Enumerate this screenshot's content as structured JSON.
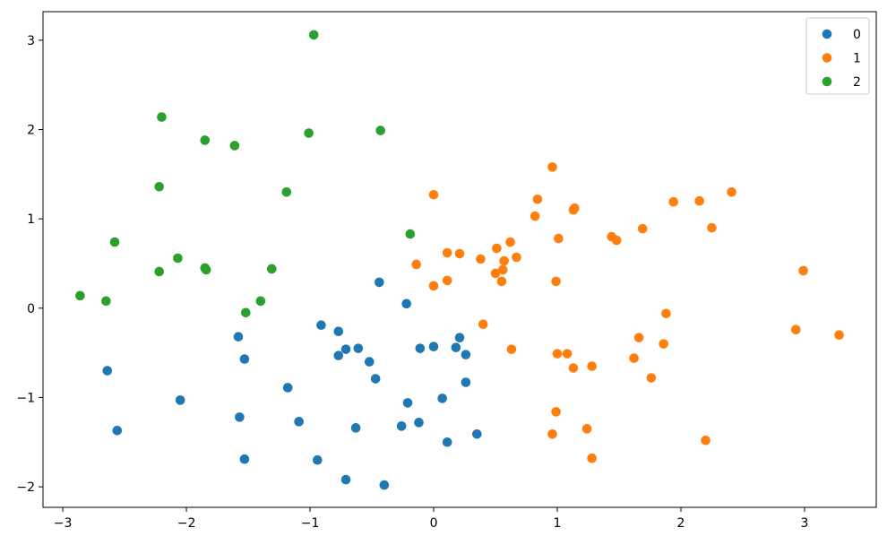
{
  "chart_data": {
    "type": "scatter",
    "title": "",
    "xlabel": "",
    "ylabel": "",
    "xlim": [
      -3.16,
      3.58
    ],
    "ylim": [
      -2.23,
      3.32
    ],
    "xticks": [
      -3,
      -2,
      -1,
      0,
      1,
      2,
      3
    ],
    "yticks": [
      -2,
      -1,
      0,
      1,
      2,
      3
    ],
    "xtick_labels": [
      "−3",
      "−2",
      "−1",
      "0",
      "1",
      "2",
      "3"
    ],
    "ytick_labels": [
      "−2",
      "−1",
      "0",
      "1",
      "2",
      "3"
    ],
    "grid": false,
    "legend_position": "top-right",
    "series": [
      {
        "name": "0",
        "color": "#1f77b4",
        "points": [
          [
            -2.64,
            -0.7
          ],
          [
            -2.56,
            -1.37
          ],
          [
            -2.05,
            -1.03
          ],
          [
            -1.58,
            -0.32
          ],
          [
            -1.53,
            -0.57
          ],
          [
            -1.57,
            -1.22
          ],
          [
            -1.53,
            -1.69
          ],
          [
            -1.18,
            -0.89
          ],
          [
            -1.09,
            -1.27
          ],
          [
            -0.94,
            -1.7
          ],
          [
            -0.91,
            -0.19
          ],
          [
            -0.77,
            -0.26
          ],
          [
            -0.77,
            -0.53
          ],
          [
            -0.71,
            -0.46
          ],
          [
            -0.71,
            -1.92
          ],
          [
            -0.61,
            -0.45
          ],
          [
            -0.63,
            -1.34
          ],
          [
            -0.52,
            -0.6
          ],
          [
            -0.47,
            -0.79
          ],
          [
            -0.44,
            0.29
          ],
          [
            -0.4,
            -1.98
          ],
          [
            -0.26,
            -1.32
          ],
          [
            -0.22,
            0.05
          ],
          [
            -0.21,
            -1.06
          ],
          [
            -0.12,
            -1.28
          ],
          [
            -0.11,
            -0.45
          ],
          [
            0.0,
            -0.43
          ],
          [
            0.07,
            -1.01
          ],
          [
            0.11,
            -1.5
          ],
          [
            0.18,
            -0.44
          ],
          [
            0.21,
            -0.33
          ],
          [
            0.26,
            -0.52
          ],
          [
            0.26,
            -0.83
          ],
          [
            0.35,
            -1.41
          ]
        ]
      },
      {
        "name": "1",
        "color": "#ff7f0e",
        "points": [
          [
            0.0,
            1.27
          ],
          [
            0.0,
            0.25
          ],
          [
            -0.14,
            0.49
          ],
          [
            0.11,
            0.62
          ],
          [
            0.11,
            0.31
          ],
          [
            0.21,
            0.61
          ],
          [
            0.38,
            0.55
          ],
          [
            0.4,
            -0.18
          ],
          [
            0.5,
            0.39
          ],
          [
            0.51,
            0.67
          ],
          [
            0.55,
            0.3
          ],
          [
            0.56,
            0.43
          ],
          [
            0.57,
            0.53
          ],
          [
            0.62,
            0.74
          ],
          [
            0.63,
            -0.46
          ],
          [
            0.67,
            0.57
          ],
          [
            0.82,
            1.03
          ],
          [
            0.84,
            1.22
          ],
          [
            0.96,
            1.58
          ],
          [
            0.96,
            -1.41
          ],
          [
            0.99,
            -1.16
          ],
          [
            0.99,
            0.3
          ],
          [
            1.0,
            -0.51
          ],
          [
            1.01,
            0.78
          ],
          [
            1.08,
            -0.51
          ],
          [
            1.13,
            1.1
          ],
          [
            1.13,
            -0.67
          ],
          [
            1.14,
            1.12
          ],
          [
            1.24,
            -1.35
          ],
          [
            1.28,
            -0.65
          ],
          [
            1.28,
            -1.68
          ],
          [
            1.44,
            0.8
          ],
          [
            1.48,
            0.76
          ],
          [
            1.62,
            -0.56
          ],
          [
            1.66,
            -0.33
          ],
          [
            1.69,
            0.89
          ],
          [
            1.76,
            -0.78
          ],
          [
            1.86,
            -0.4
          ],
          [
            1.88,
            -0.06
          ],
          [
            1.94,
            1.19
          ],
          [
            2.15,
            1.2
          ],
          [
            2.2,
            -1.48
          ],
          [
            2.25,
            0.9
          ],
          [
            2.41,
            1.3
          ],
          [
            2.93,
            -0.24
          ],
          [
            2.99,
            0.42
          ],
          [
            3.28,
            -0.3
          ]
        ]
      },
      {
        "name": "2",
        "color": "#2ca02c",
        "points": [
          [
            -2.86,
            0.14
          ],
          [
            -2.65,
            0.08
          ],
          [
            -2.58,
            0.74
          ],
          [
            -2.22,
            1.36
          ],
          [
            -2.22,
            0.41
          ],
          [
            -2.2,
            2.14
          ],
          [
            -2.07,
            0.56
          ],
          [
            -1.85,
            1.88
          ],
          [
            -1.85,
            0.45
          ],
          [
            -1.84,
            0.43
          ],
          [
            -1.61,
            1.82
          ],
          [
            -1.52,
            -0.05
          ],
          [
            -1.4,
            0.08
          ],
          [
            -1.31,
            0.44
          ],
          [
            -1.19,
            1.3
          ],
          [
            -1.01,
            1.96
          ],
          [
            -0.97,
            3.06
          ],
          [
            -0.43,
            1.99
          ],
          [
            -0.19,
            0.83
          ]
        ]
      }
    ]
  }
}
